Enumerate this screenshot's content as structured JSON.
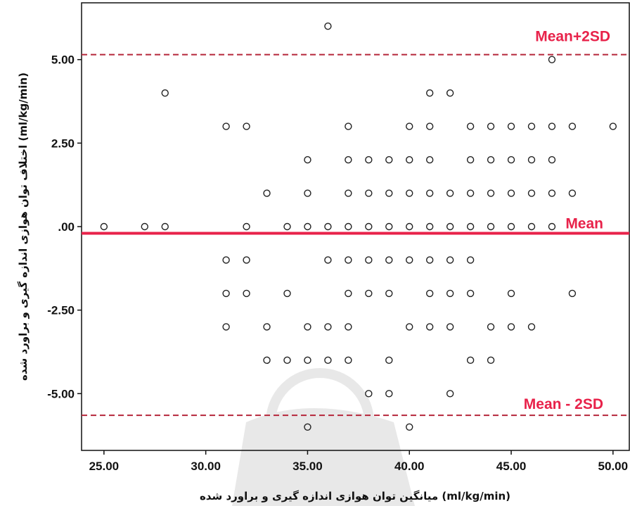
{
  "chart_data": {
    "type": "scatter",
    "xlabel": "میانگین توان هوازی اندازه گیری و براورد شده (ml/kg/min)",
    "ylabel": "اختلاف توان هوازی اندازه گیری و براورد شده (ml/kg/min)",
    "xlim": [
      23.9,
      50.8
    ],
    "ylim": [
      -6.7,
      6.7
    ],
    "x_ticks": [
      "25.00",
      "30.00",
      "35.00",
      "40.00",
      "45.00",
      "50.00"
    ],
    "y_ticks": [
      "5.00",
      "2.50",
      ".00",
      "-2.50",
      "-5.00"
    ],
    "grid": false,
    "reference_lines": [
      {
        "label": "Mean+2SD",
        "y": 5.15,
        "style": "dashed",
        "color": "#b5263a"
      },
      {
        "label": "Mean",
        "y": -0.2,
        "style": "solid",
        "color": "#e8224a"
      },
      {
        "label": "Mean - 2SD",
        "y": -5.65,
        "style": "dashed",
        "color": "#b5263a"
      }
    ],
    "points": [
      [
        36,
        6
      ],
      [
        47,
        5
      ],
      [
        28,
        4
      ],
      [
        41,
        4
      ],
      [
        42,
        4
      ],
      [
        31,
        3
      ],
      [
        32,
        3
      ],
      [
        37,
        3
      ],
      [
        40,
        3
      ],
      [
        41,
        3
      ],
      [
        43,
        3
      ],
      [
        44,
        3
      ],
      [
        45,
        3
      ],
      [
        46,
        3
      ],
      [
        47,
        3
      ],
      [
        48,
        3
      ],
      [
        50,
        3
      ],
      [
        35,
        2
      ],
      [
        37,
        2
      ],
      [
        38,
        2
      ],
      [
        39,
        2
      ],
      [
        40,
        2
      ],
      [
        41,
        2
      ],
      [
        43,
        2
      ],
      [
        44,
        2
      ],
      [
        45,
        2
      ],
      [
        46,
        2
      ],
      [
        47,
        2
      ],
      [
        33,
        1
      ],
      [
        35,
        1
      ],
      [
        37,
        1
      ],
      [
        38,
        1
      ],
      [
        39,
        1
      ],
      [
        40,
        1
      ],
      [
        41,
        1
      ],
      [
        42,
        1
      ],
      [
        43,
        1
      ],
      [
        44,
        1
      ],
      [
        45,
        1
      ],
      [
        46,
        1
      ],
      [
        47,
        1
      ],
      [
        48,
        1
      ],
      [
        25,
        0
      ],
      [
        27,
        0
      ],
      [
        28,
        0
      ],
      [
        32,
        0
      ],
      [
        34,
        0
      ],
      [
        35,
        0
      ],
      [
        36,
        0
      ],
      [
        37,
        0
      ],
      [
        38,
        0
      ],
      [
        39,
        0
      ],
      [
        40,
        0
      ],
      [
        41,
        0
      ],
      [
        42,
        0
      ],
      [
        43,
        0
      ],
      [
        44,
        0
      ],
      [
        45,
        0
      ],
      [
        46,
        0
      ],
      [
        47,
        0
      ],
      [
        31,
        -1
      ],
      [
        32,
        -1
      ],
      [
        36,
        -1
      ],
      [
        37,
        -1
      ],
      [
        38,
        -1
      ],
      [
        39,
        -1
      ],
      [
        40,
        -1
      ],
      [
        41,
        -1
      ],
      [
        42,
        -1
      ],
      [
        43,
        -1
      ],
      [
        31,
        -2
      ],
      [
        32,
        -2
      ],
      [
        34,
        -2
      ],
      [
        37,
        -2
      ],
      [
        38,
        -2
      ],
      [
        39,
        -2
      ],
      [
        41,
        -2
      ],
      [
        42,
        -2
      ],
      [
        43,
        -2
      ],
      [
        45,
        -2
      ],
      [
        48,
        -2
      ],
      [
        31,
        -3
      ],
      [
        33,
        -3
      ],
      [
        35,
        -3
      ],
      [
        36,
        -3
      ],
      [
        37,
        -3
      ],
      [
        40,
        -3
      ],
      [
        41,
        -3
      ],
      [
        42,
        -3
      ],
      [
        44,
        -3
      ],
      [
        45,
        -3
      ],
      [
        46,
        -3
      ],
      [
        33,
        -4
      ],
      [
        34,
        -4
      ],
      [
        35,
        -4
      ],
      [
        36,
        -4
      ],
      [
        37,
        -4
      ],
      [
        39,
        -4
      ],
      [
        43,
        -4
      ],
      [
        44,
        -4
      ],
      [
        38,
        -5
      ],
      [
        39,
        -5
      ],
      [
        42,
        -5
      ],
      [
        35,
        -6
      ],
      [
        40,
        -6
      ]
    ]
  }
}
